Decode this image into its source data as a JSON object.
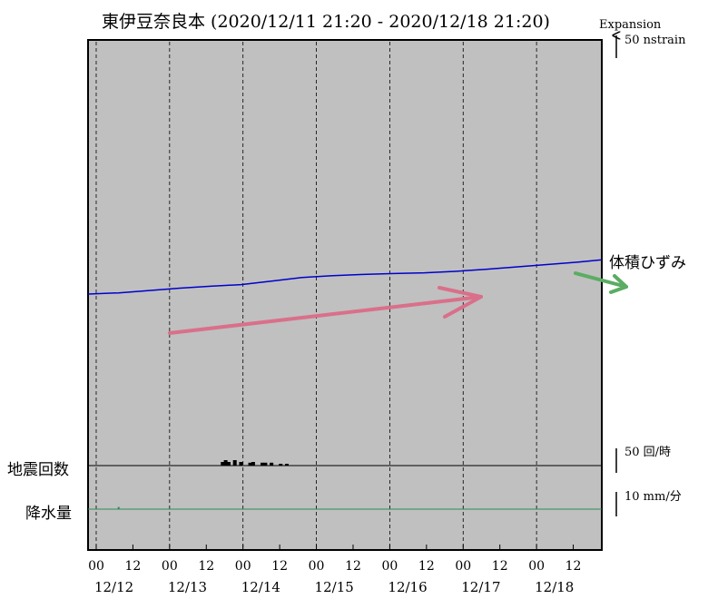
{
  "title": "東伊豆奈良本 (2020/12/11 21:20 - 2020/12/18 21:20)",
  "scale": {
    "expansion_label": "Expansion",
    "strain_label": "50 nstrain",
    "quake_label": "50 回/時",
    "rain_label": "10 mm/分"
  },
  "labels": {
    "volumetric": "体積ひずみ",
    "quake": "地震回数",
    "rain": "降水量"
  },
  "colors": {
    "plot_bg": "#c0c0c0",
    "strain_line": "#0000cc",
    "rain_line": "#2e8b57",
    "red_arrow": "#d9708a",
    "green_arrow": "#5aad63"
  },
  "chart_data": {
    "type": "line",
    "x_start": "2020/12/11 21:20",
    "x_end": "2020/12/18 21:20",
    "x_ticks": [
      "00",
      "12",
      "00",
      "12",
      "00",
      "12",
      "00",
      "12",
      "00",
      "12",
      "00",
      "12",
      "00",
      "12"
    ],
    "date_labels": [
      "12/12",
      "12/13",
      "12/14",
      "12/15",
      "12/16",
      "12/17",
      "12/18"
    ],
    "series": [
      {
        "name": "体積ひずみ",
        "x_hours": [
          0,
          10,
          20,
          30,
          40,
          50,
          60,
          70,
          80,
          90,
          100,
          110,
          120,
          130,
          140,
          150,
          160,
          168
        ],
        "values": [
          0,
          0.5,
          1.5,
          2.5,
          3.3,
          4.0,
          5.5,
          7.0,
          7.8,
          8.3,
          8.7,
          9.0,
          9.6,
          10.5,
          11.5,
          12.5,
          13.5,
          14.5
        ]
      }
    ],
    "quake_counts": {
      "x_hours": [
        44,
        45,
        46,
        48,
        50,
        53,
        54,
        57,
        58,
        60,
        63,
        65
      ],
      "values": [
        1,
        1.5,
        1,
        1.5,
        1,
        0.8,
        1,
        0.8,
        0.8,
        0.8,
        0.5,
        0.5
      ]
    },
    "rain": {
      "x_hours": [
        10
      ],
      "values": [
        0.2
      ]
    }
  }
}
